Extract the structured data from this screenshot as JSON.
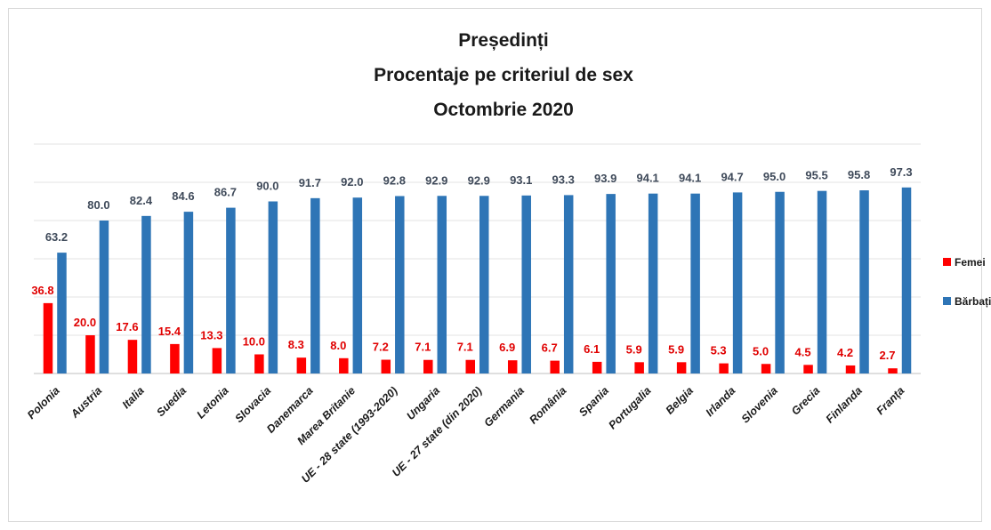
{
  "chart_data": {
    "type": "bar",
    "title": [
      "Președinți",
      "Procentaje pe criteriul de sex",
      "Octombrie 2020"
    ],
    "categories": [
      "Polonia",
      "Austria",
      "Italia",
      "Suedia",
      "Letonia",
      "Slovacia",
      "Danemarca",
      "Marea Britanie",
      "UE - 28 state (1993-2020)",
      "Ungaria",
      "UE - 27 state (din 2020)",
      "Germania",
      "România",
      "Spania",
      "Portugalia",
      "Belgia",
      "Irlanda",
      "Slovenia",
      "Grecia",
      "Finlanda",
      "Franța"
    ],
    "series": [
      {
        "name": "Femei",
        "color": "#ff0000",
        "label_color": "#e00000",
        "values": [
          36.8,
          20.0,
          17.6,
          15.4,
          13.3,
          10.0,
          8.3,
          8.0,
          7.2,
          7.1,
          7.1,
          6.9,
          6.7,
          6.1,
          5.9,
          5.9,
          5.3,
          5.0,
          4.5,
          4.2,
          2.7
        ]
      },
      {
        "name": "Bărbați",
        "color": "#2e75b6",
        "label_color": "#3f4a5a",
        "values": [
          63.2,
          80.0,
          82.4,
          84.6,
          86.7,
          90.0,
          91.7,
          92.0,
          92.8,
          92.9,
          92.9,
          93.1,
          93.3,
          93.9,
          94.1,
          94.1,
          94.7,
          95.0,
          95.5,
          95.8,
          97.3
        ]
      }
    ],
    "ylim": [
      0,
      120
    ],
    "grid": true,
    "legend": "right",
    "xlabel": "",
    "ylabel": ""
  }
}
